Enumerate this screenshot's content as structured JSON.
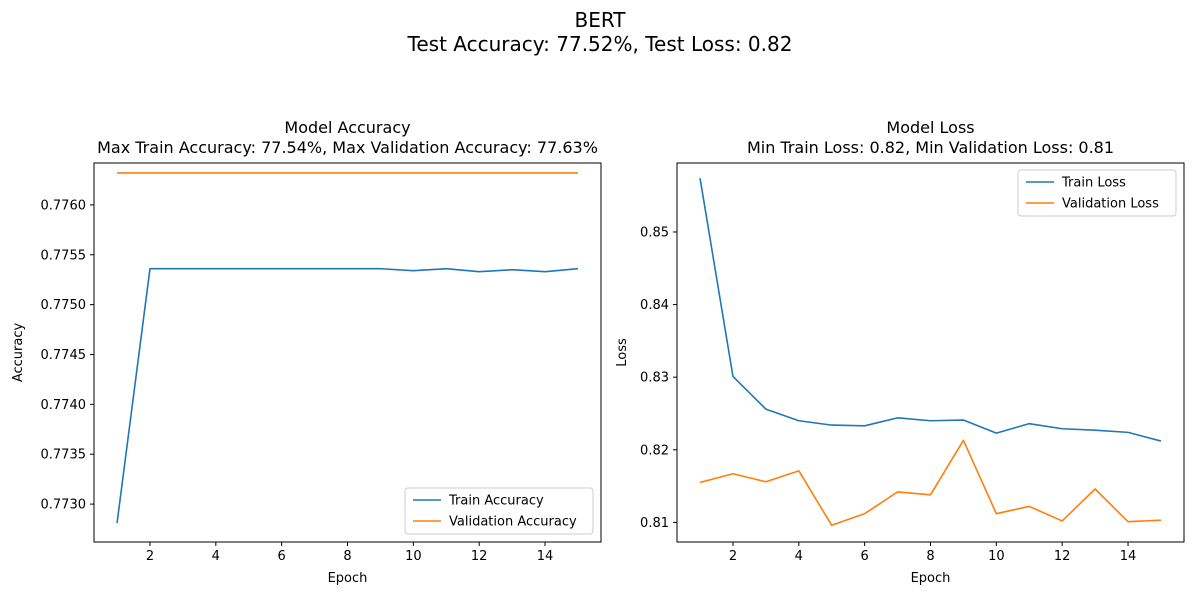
{
  "figure": {
    "title_line1": "BERT",
    "title_line2": "Test Accuracy: 77.52%, Test Loss: 0.82"
  },
  "chart_data": [
    {
      "type": "line",
      "title": "Model Accuracy",
      "subtitle": "Max Train Accuracy: 77.54%, Max Validation Accuracy: 77.63%",
      "xlabel": "Epoch",
      "ylabel": "Accuracy",
      "x": [
        1,
        2,
        3,
        4,
        5,
        6,
        7,
        8,
        9,
        10,
        11,
        12,
        13,
        14,
        15
      ],
      "xticks": [
        2,
        4,
        6,
        8,
        10,
        12,
        14
      ],
      "yticks": [
        0.773,
        0.7735,
        0.774,
        0.7745,
        0.775,
        0.7755,
        0.776
      ],
      "ytick_decimals": 4,
      "xlim": [
        0.3,
        15.7
      ],
      "ylim": [
        0.77262,
        0.77642
      ],
      "legend_position": "lower-right",
      "grid": false,
      "series": [
        {
          "name": "Train Accuracy",
          "color": "#1f77b4",
          "values": [
            0.77281,
            0.77536,
            0.77536,
            0.77536,
            0.77536,
            0.77536,
            0.77536,
            0.77536,
            0.77536,
            0.77534,
            0.77536,
            0.77533,
            0.77535,
            0.77533,
            0.77536
          ]
        },
        {
          "name": "Validation Accuracy",
          "color": "#ff7f0e",
          "values": [
            0.77632,
            0.77632,
            0.77632,
            0.77632,
            0.77632,
            0.77632,
            0.77632,
            0.77632,
            0.77632,
            0.77632,
            0.77632,
            0.77632,
            0.77632,
            0.77632,
            0.77632
          ]
        }
      ]
    },
    {
      "type": "line",
      "title": "Model Loss",
      "subtitle": "Min Train Loss: 0.82, Min Validation Loss: 0.81",
      "xlabel": "Epoch",
      "ylabel": "Loss",
      "x": [
        1,
        2,
        3,
        4,
        5,
        6,
        7,
        8,
        9,
        10,
        11,
        12,
        13,
        14,
        15
      ],
      "xticks": [
        2,
        4,
        6,
        8,
        10,
        12,
        14
      ],
      "yticks": [
        0.81,
        0.82,
        0.83,
        0.84,
        0.85
      ],
      "ytick_decimals": 2,
      "xlim": [
        0.3,
        15.7
      ],
      "ylim": [
        0.8073,
        0.8595
      ],
      "legend_position": "upper-right",
      "grid": false,
      "series": [
        {
          "name": "Train Loss",
          "color": "#1f77b4",
          "values": [
            0.8574,
            0.8301,
            0.8256,
            0.824,
            0.8234,
            0.8233,
            0.8244,
            0.824,
            0.8241,
            0.8223,
            0.8236,
            0.8229,
            0.8227,
            0.8224,
            0.8212
          ]
        },
        {
          "name": "Validation Loss",
          "color": "#ff7f0e",
          "values": [
            0.8155,
            0.8167,
            0.8156,
            0.8171,
            0.8096,
            0.8112,
            0.8142,
            0.8138,
            0.8213,
            0.8112,
            0.8122,
            0.8102,
            0.8146,
            0.8101,
            0.8103
          ]
        }
      ]
    }
  ]
}
